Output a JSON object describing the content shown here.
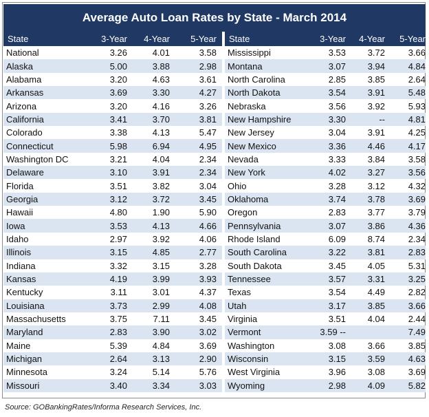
{
  "title": "Average Auto Loan Rates by State - March 2014",
  "headers": [
    "State",
    "3-Year",
    "4-Year",
    "5-Year"
  ],
  "left_rows": [
    [
      "National",
      "3.26",
      "4.01",
      "3.58"
    ],
    [
      "Alaska",
      "5.00",
      "3.88",
      "2.98"
    ],
    [
      "Alabama",
      "3.20",
      "4.63",
      "3.61"
    ],
    [
      "Arkansas",
      "3.69",
      "3.30",
      "4.27"
    ],
    [
      "Arizona",
      "3.20",
      "4.16",
      "3.26"
    ],
    [
      "California",
      "3.41",
      "3.70",
      "3.81"
    ],
    [
      "Colorado",
      "3.38",
      "4.13",
      "5.47"
    ],
    [
      "Connecticut",
      "5.98",
      "6.94",
      "4.95"
    ],
    [
      "Washington DC",
      "3.21",
      "4.04",
      "2.34"
    ],
    [
      "Delaware",
      "3.10",
      "3.91",
      "2.34"
    ],
    [
      "Florida",
      "3.51",
      "3.82",
      "3.04"
    ],
    [
      "Georgia",
      "3.12",
      "3.72",
      "3.45"
    ],
    [
      "Hawaii",
      "4.80",
      "1.90",
      "5.90"
    ],
    [
      "Iowa",
      "3.53",
      "4.13",
      "4.66"
    ],
    [
      "Idaho",
      "2.97",
      "3.92",
      "4.06"
    ],
    [
      "Illinois",
      "3.15",
      "4.85",
      "2.77"
    ],
    [
      "Indiana",
      "3.32",
      "3.15",
      "3.28"
    ],
    [
      "Kansas",
      "4.19",
      "3.99",
      "3.93"
    ],
    [
      "Kentucky",
      "3.11",
      "3.01",
      "4.37"
    ],
    [
      "Louisiana",
      "3.73",
      "2.99",
      "4.08"
    ],
    [
      "Massachusetts",
      "3.75",
      "7.11",
      "3.45"
    ],
    [
      "Maryland",
      "2.83",
      "3.90",
      "3.02"
    ],
    [
      "Maine",
      "5.39",
      "4.84",
      "3.69"
    ],
    [
      "Michigan",
      "2.64",
      "3.13",
      "2.90"
    ],
    [
      "Minnesota",
      "3.24",
      "5.14",
      "5.76"
    ],
    [
      "Missouri",
      "3.40",
      "3.34",
      "3.03"
    ]
  ],
  "right_rows": [
    [
      "Mississippi",
      "3.53",
      "3.72",
      "3.66"
    ],
    [
      "Montana",
      "3.07",
      "3.94",
      "4.84"
    ],
    [
      "North Carolina",
      "2.85",
      "3.85",
      "2.64"
    ],
    [
      "North Dakota",
      "3.54",
      "3.91",
      "5.48"
    ],
    [
      "Nebraska",
      "3.56",
      "3.92",
      "5.93"
    ],
    [
      "New Hampshire",
      "3.30",
      "--",
      "4.81"
    ],
    [
      "New Jersey",
      "3.04",
      "3.91",
      "4.25"
    ],
    [
      "New Mexico",
      "3.36",
      "4.46",
      "4.17"
    ],
    [
      "Nevada",
      "3.33",
      "3.84",
      "3.58"
    ],
    [
      "New York",
      "4.02",
      "3.27",
      "3.56"
    ],
    [
      "Ohio",
      "3.28",
      "3.12",
      "4.32"
    ],
    [
      "Oklahoma",
      "3.74",
      "3.78",
      "3.69"
    ],
    [
      "Oregon",
      "2.83",
      "3.77",
      "3.79"
    ],
    [
      "Pennsylvania",
      "3.07",
      "3.86",
      "4.36"
    ],
    [
      "Rhode Island",
      "6.09",
      "8.74",
      "2.34"
    ],
    [
      "South Carolina",
      "3.22",
      "3.81",
      "2.83"
    ],
    [
      "South Dakota",
      "3.45",
      "4.05",
      "5.31"
    ],
    [
      "Tennessee",
      "3.57",
      "3.31",
      "3.25"
    ],
    [
      "Texas",
      "3.54",
      "4.49",
      "2.82"
    ],
    [
      "Utah",
      "3.17",
      "3.85",
      "3.66"
    ],
    [
      "Virginia",
      "3.51",
      "4.04",
      "2.44"
    ],
    [
      "Vermont",
      "3.59 --",
      "",
      "7.49"
    ],
    [
      "Washington",
      "3.08",
      "3.66",
      "3.85"
    ],
    [
      "Wisconsin",
      "3.15",
      "3.59",
      "4.63"
    ],
    [
      "West Virginia",
      "3.96",
      "3.08",
      "3.69"
    ],
    [
      "Wyoming",
      "2.98",
      "4.09",
      "5.82"
    ]
  ],
  "source": "Source: GOBankingRates/Informa Research Services, Inc.",
  "colors": {
    "header_bg": "#1f3864",
    "stripe": "#dbe5f1"
  }
}
